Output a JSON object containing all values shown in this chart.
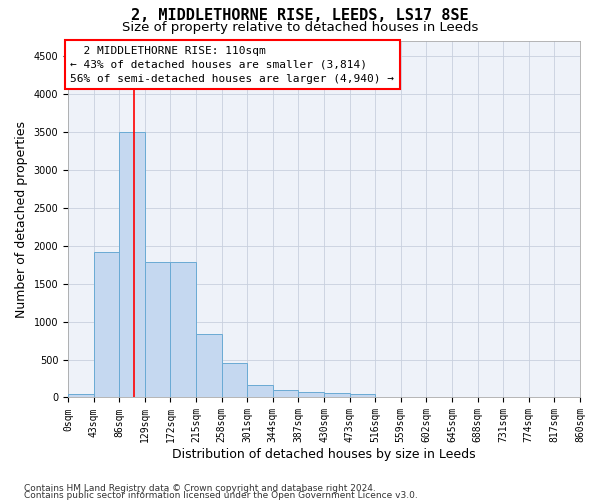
{
  "title": "2, MIDDLETHORNE RISE, LEEDS, LS17 8SE",
  "subtitle": "Size of property relative to detached houses in Leeds",
  "xlabel": "Distribution of detached houses by size in Leeds",
  "ylabel": "Number of detached properties",
  "footnote1": "Contains HM Land Registry data © Crown copyright and database right 2024.",
  "footnote2": "Contains public sector information licensed under the Open Government Licence v3.0.",
  "annotation_line1": "2 MIDDLETHORNE RISE: 110sqm",
  "annotation_line2": "← 43% of detached houses are smaller (3,814)",
  "annotation_line3": "56% of semi-detached houses are larger (4,940) →",
  "bar_edges": [
    0,
    43,
    86,
    129,
    172,
    215,
    258,
    301,
    344,
    387,
    430,
    473,
    516,
    559,
    602,
    645,
    688,
    731,
    774,
    817,
    860
  ],
  "bar_heights": [
    50,
    1920,
    3500,
    1780,
    1780,
    840,
    460,
    160,
    100,
    70,
    55,
    40,
    0,
    0,
    0,
    0,
    0,
    0,
    0,
    0
  ],
  "bar_color": "#c5d8f0",
  "bar_edge_color": "#6aaad4",
  "red_line_x": 110,
  "ylim": [
    0,
    4700
  ],
  "yticks": [
    0,
    500,
    1000,
    1500,
    2000,
    2500,
    3000,
    3500,
    4000,
    4500
  ],
  "bg_color": "#eef2f9",
  "grid_color": "#c8d0de",
  "title_fontsize": 11,
  "subtitle_fontsize": 9.5,
  "axis_label_fontsize": 9,
  "tick_fontsize": 7,
  "annotation_fontsize": 8,
  "footnote_fontsize": 6.5
}
